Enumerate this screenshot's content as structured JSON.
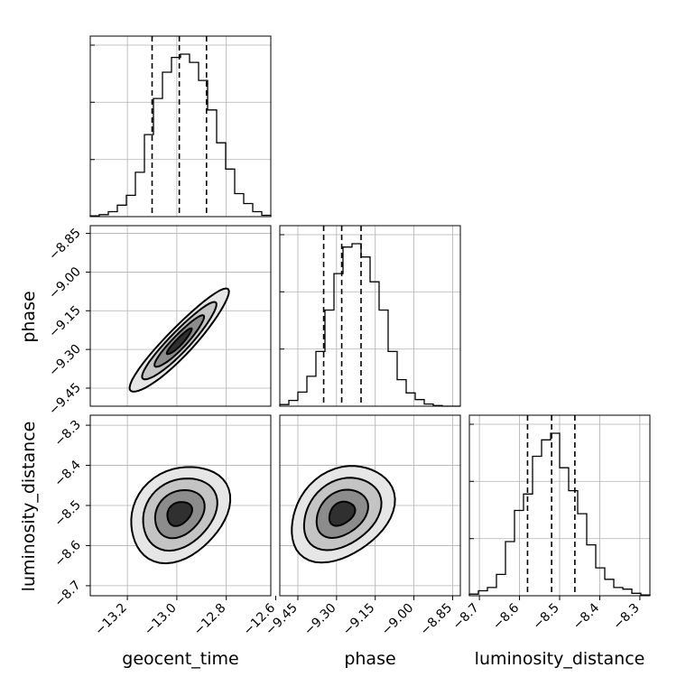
{
  "chart_data": {
    "type": "corner",
    "parameters": [
      {
        "name": "geocent_time",
        "label": "geocent_time",
        "range": [
          -13.35,
          -12.62
        ],
        "ticks": [
          -13.2,
          -13.0,
          -12.8,
          -12.6
        ],
        "tick_labels": [
          "−13.2",
          "−13.0",
          "−12.8",
          "−12.6"
        ],
        "quantiles": [
          -13.1,
          -12.99,
          -12.88
        ]
      },
      {
        "name": "phase",
        "label": "phase",
        "range": [
          -9.52,
          -8.82
        ],
        "ticks": [
          -9.45,
          -9.3,
          -9.15,
          -9.0,
          -8.85
        ],
        "tick_labels": [
          "−9.45",
          "−9.30",
          "−9.15",
          "−9.00",
          "−8.85"
        ],
        "quantiles": [
          -9.35,
          -9.28,
          -9.205
        ]
      },
      {
        "name": "luminosity_distance",
        "label": "luminosity_distance",
        "range": [
          -8.725,
          -8.275
        ],
        "ticks": [
          -8.7,
          -8.6,
          -8.5,
          -8.4,
          -8.3
        ],
        "tick_labels": [
          "−8.7",
          "−8.6",
          "−8.5",
          "−8.4",
          "−8.3"
        ],
        "quantiles": [
          -8.58,
          -8.52,
          -8.462
        ]
      }
    ],
    "histograms": [
      {
        "param": "geocent_time",
        "bin_start": -13.35,
        "bin_width": 0.0365,
        "counts": [
          0.005,
          0.012,
          0.03,
          0.07,
          0.13,
          0.27,
          0.5,
          0.72,
          0.88,
          0.97,
          0.99,
          0.94,
          0.83,
          0.65,
          0.45,
          0.29,
          0.14,
          0.08,
          0.03,
          0.008
        ]
      },
      {
        "param": "phase",
        "bin_start": -9.52,
        "bin_width": 0.035,
        "counts": [
          0.01,
          0.035,
          0.085,
          0.18,
          0.33,
          0.58,
          0.8,
          0.96,
          0.98,
          0.9,
          0.75,
          0.58,
          0.33,
          0.16,
          0.08,
          0.04,
          0.013,
          0.004,
          0.0,
          0.0
        ]
      },
      {
        "param": "luminosity_distance",
        "bin_start": -8.725,
        "bin_width": 0.0225,
        "counts": [
          0.01,
          0.03,
          0.05,
          0.13,
          0.33,
          0.52,
          0.62,
          0.85,
          0.95,
          0.99,
          0.78,
          0.64,
          0.5,
          0.31,
          0.17,
          0.1,
          0.05,
          0.04,
          0.015,
          0.005
        ]
      }
    ],
    "pairs": [
      {
        "x": "geocent_time",
        "y": "phase",
        "mean": [
          -12.99,
          -9.27
        ],
        "sd": [
          0.1,
          0.1
        ],
        "corr": 0.93
      },
      {
        "x": "geocent_time",
        "y": "luminosity_distance",
        "mean": [
          -12.99,
          -8.52
        ],
        "sd": [
          0.1,
          0.06
        ],
        "corr": 0.25
      },
      {
        "x": "phase",
        "y": "luminosity_distance",
        "mean": [
          -9.28,
          -8.52
        ],
        "sd": [
          0.1,
          0.06
        ],
        "corr": 0.3
      }
    ],
    "grid": true
  }
}
